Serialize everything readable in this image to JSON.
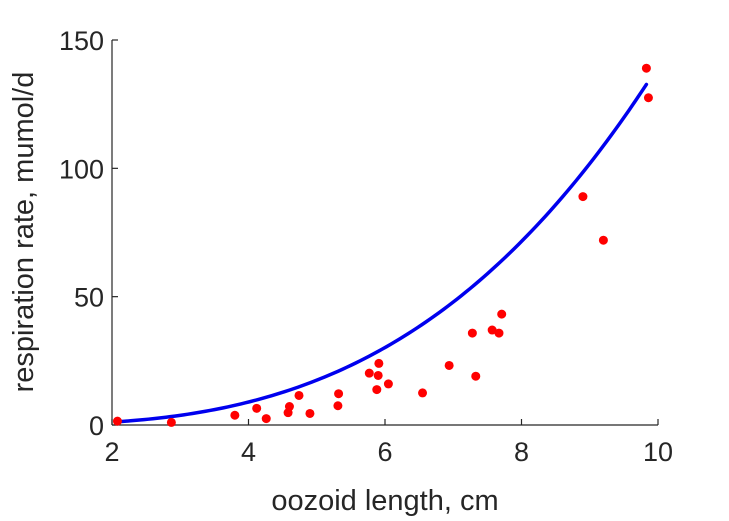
{
  "chart_data": {
    "type": "scatter",
    "title": "",
    "xlabel": "oozoid length, cm",
    "ylabel": "respiration rate, mumol/d",
    "xlim": [
      2,
      10
    ],
    "ylim": [
      0,
      150
    ],
    "x_ticks": [
      2,
      4,
      6,
      8,
      10
    ],
    "y_ticks": [
      0,
      50,
      100,
      150
    ],
    "x_tick_labels": [
      "2",
      "4",
      "6",
      "8",
      "10"
    ],
    "y_tick_labels": [
      "0",
      "50",
      "100",
      "150"
    ],
    "grid": false,
    "legend": false,
    "series": [
      {
        "type": "scatter",
        "color": "#ff0000",
        "x": [
          2.08,
          2.87,
          3.8,
          4.12,
          4.26,
          4.58,
          4.6,
          4.74,
          4.9,
          5.31,
          5.32,
          5.77,
          5.88,
          5.9,
          5.91,
          6.05,
          6.55,
          6.94,
          7.28,
          7.33,
          7.57,
          7.67,
          7.71,
          8.9,
          9.2,
          9.83,
          9.86
        ],
        "y": [
          1.5,
          1.0,
          3.8,
          6.5,
          2.5,
          4.8,
          7.2,
          11.5,
          4.5,
          7.5,
          12.2,
          20.2,
          13.8,
          19.3,
          24.0,
          16.0,
          12.5,
          23.2,
          35.8,
          19.0,
          37.0,
          35.8,
          43.2,
          89.0,
          72.0,
          139.0,
          127.5
        ]
      },
      {
        "type": "line",
        "color": "#0000ee",
        "curve": "power",
        "coefficient": 0.1397,
        "exponent": 3.0,
        "x_range": [
          2.08,
          9.83
        ]
      }
    ]
  }
}
